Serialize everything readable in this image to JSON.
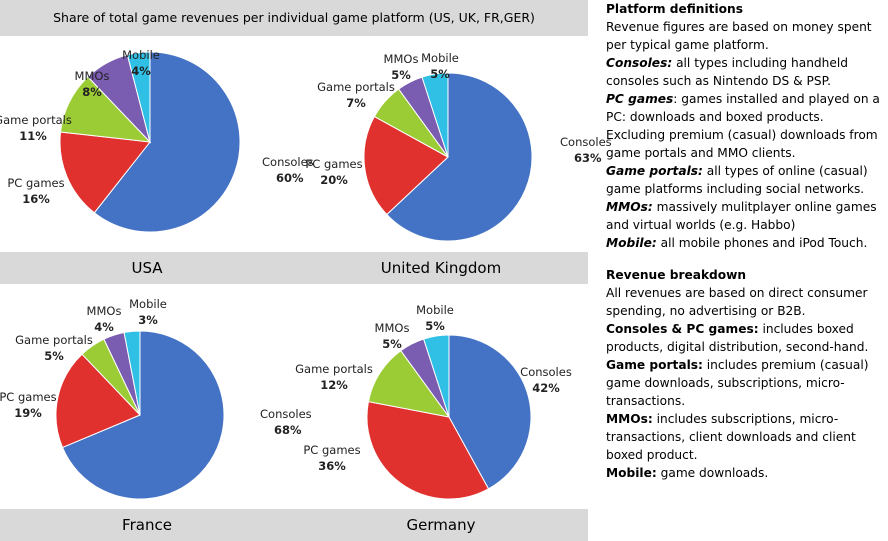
{
  "title": "Share of total game revenues per individual game platform  (US, UK, FR,GER)",
  "chart_data": [
    {
      "type": "pie",
      "title": "USA",
      "slices": [
        {
          "label": "Consoles",
          "value": 60,
          "pct": "60%",
          "color": "#4472c4"
        },
        {
          "label": "PC games",
          "value": 16,
          "pct": "16%",
          "color": "#e0312f"
        },
        {
          "label": "Game portals",
          "value": 11,
          "pct": "11%",
          "color": "#9bcc35"
        },
        {
          "label": "MMOs",
          "value": 8,
          "pct": "8%",
          "color": "#7a5cb0"
        },
        {
          "label": "Mobile",
          "value": 4,
          "pct": "4%",
          "color": "#31c0e5"
        }
      ]
    },
    {
      "type": "pie",
      "title": "United Kingdom",
      "slices": [
        {
          "label": "Consoles",
          "value": 63,
          "pct": "63%",
          "color": "#4472c4"
        },
        {
          "label": "PC games",
          "value": 20,
          "pct": "20%",
          "color": "#e0312f"
        },
        {
          "label": "Game portals",
          "value": 7,
          "pct": "7%",
          "color": "#9bcc35"
        },
        {
          "label": "MMOs",
          "value": 5,
          "pct": "5%",
          "color": "#7a5cb0"
        },
        {
          "label": "Mobile",
          "value": 5,
          "pct": "5%",
          "color": "#31c0e5"
        }
      ]
    },
    {
      "type": "pie",
      "title": "France",
      "slices": [
        {
          "label": "Consoles",
          "value": 68,
          "pct": "68%",
          "color": "#4472c4"
        },
        {
          "label": "PC games",
          "value": 19,
          "pct": "19%",
          "color": "#e0312f"
        },
        {
          "label": "Game portals",
          "value": 5,
          "pct": "5%",
          "color": "#9bcc35"
        },
        {
          "label": "MMOs",
          "value": 4,
          "pct": "4%",
          "color": "#7a5cb0"
        },
        {
          "label": "Mobile",
          "value": 3,
          "pct": "3%",
          "color": "#31c0e5"
        }
      ]
    },
    {
      "type": "pie",
      "title": "Germany",
      "slices": [
        {
          "label": "Consoles",
          "value": 42,
          "pct": "42%",
          "color": "#4472c4"
        },
        {
          "label": "PC games",
          "value": 36,
          "pct": "36%",
          "color": "#e0312f"
        },
        {
          "label": "Game portals",
          "value": 12,
          "pct": "12%",
          "color": "#9bcc35"
        },
        {
          "label": "MMOs",
          "value": 5,
          "pct": "5%",
          "color": "#7a5cb0"
        },
        {
          "label": "Mobile",
          "value": 5,
          "pct": "5%",
          "color": "#31c0e5"
        }
      ]
    }
  ],
  "sidebar": {
    "defs_heading": "Platform definitions",
    "defs_intro": "Revenue figures are based on money spent per typical game platform.",
    "consoles_term": "Consoles:",
    "consoles_text": " all types including handheld consoles such as Nintendo DS & PSP.",
    "pc_term": "PC games",
    "pc_text": ": games installed and played on a PC: downloads and boxed products. Excluding premium (casual) downloads from game portals and MMO clients.",
    "portals_term": "Game portals:",
    "portals_text": " all types of online (casual) game platforms including social networks.",
    "mmos_term": "MMOs:",
    "mmos_text": " massively mulitplayer online games and virtual worlds (e.g. Habbo)",
    "mobile_term": "Mobile:",
    "mobile_text": " all mobile phones and iPod Touch.",
    "breakdown_heading": "Revenue breakdown",
    "breakdown_intro": "All revenues are based on direct consumer spending, no advertising or B2B.",
    "b_consoles_term": "Consoles & PC games:",
    "b_consoles_text": " includes boxed products, digital distribution, second-hand.",
    "b_portals_term": "Game portals:",
    "b_portals_text": " includes premium (casual) game downloads, subscriptions, micro-transactions.",
    "b_mmos_term": "MMOs:",
    "b_mmos_text": " includes subscriptions, micro-transactions, client downloads and client boxed product.",
    "b_mobile_term": "Mobile:",
    "b_mobile_text": " game downloads."
  }
}
